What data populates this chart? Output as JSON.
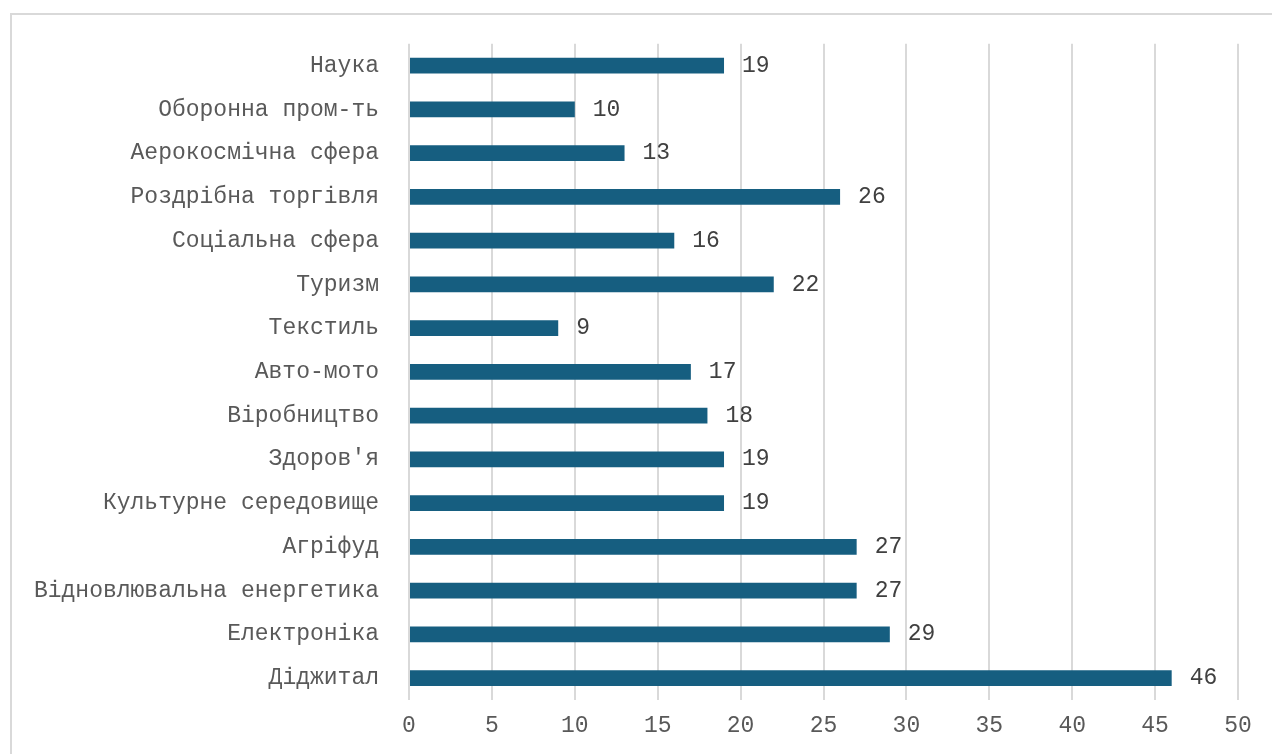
{
  "chart_data": {
    "type": "bar",
    "orientation": "horizontal",
    "categories": [
      "Наука",
      "Оборонна пром-ть",
      "Аерокосмічна сфера",
      "Роздрібна торгівля",
      "Соціальна сфера",
      "Туризм",
      "Текстиль",
      "Авто-мото",
      "Віробництво",
      "Здоров'я",
      "Культурне середовище",
      "Агріфуд",
      "Відновлювальна енергетика",
      "Електроніка",
      "Діджитал"
    ],
    "values": [
      19,
      10,
      13,
      26,
      16,
      22,
      9,
      17,
      18,
      19,
      19,
      27,
      27,
      29,
      46
    ],
    "color": "#165e80",
    "xlim": [
      0,
      50
    ],
    "xticks": [
      0,
      5,
      10,
      15,
      20,
      25,
      30,
      35,
      40,
      45,
      50
    ],
    "grid": "x",
    "data_labels": true
  }
}
